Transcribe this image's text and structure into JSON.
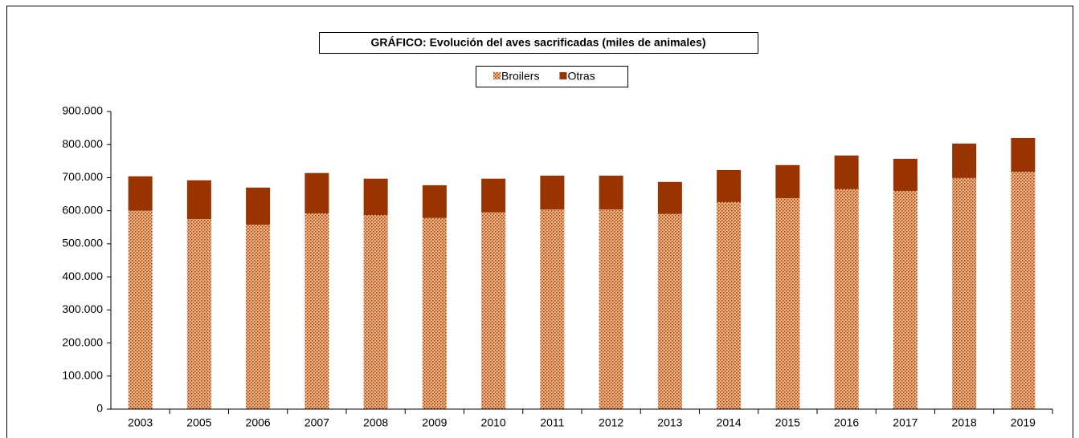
{
  "chart_data": {
    "type": "stacked_bar",
    "title": "GRÁFICO: Evolución del aves sacrificadas (miles de animales)",
    "categories": [
      "2003",
      "2005",
      "2006",
      "2007",
      "2008",
      "2009",
      "2010",
      "2011",
      "2012",
      "2013",
      "2014",
      "2015",
      "2016",
      "2017",
      "2018",
      "2019"
    ],
    "series": [
      {
        "name": "Broilers",
        "color": "#f4b183",
        "pattern": true,
        "values": [
          600000,
          575000,
          558000,
          592000,
          587000,
          578000,
          595000,
          604000,
          604000,
          590000,
          626000,
          638000,
          665000,
          660000,
          699000,
          718000
        ]
      },
      {
        "name": "Otras",
        "color": "#993300",
        "values": [
          104000,
          117000,
          112000,
          122000,
          110000,
          99000,
          102000,
          102000,
          102000,
          97000,
          97000,
          100000,
          102000,
          97000,
          104000,
          102000
        ]
      }
    ],
    "ylim": [
      0,
      900000
    ],
    "yticks": [
      0,
      {
        "value": 100000,
        "label": "100.000"
      },
      {
        "value": 200000,
        "label": "200.000"
      },
      {
        "value": 300000,
        "label": "300.000"
      },
      {
        "value": 400000,
        "label": "400.000"
      },
      {
        "value": 500000,
        "label": "500.000"
      },
      {
        "value": 600000,
        "label": "600.000"
      },
      {
        "value": 700000,
        "label": "700.000"
      },
      {
        "value": 800000,
        "label": "800.000"
      },
      {
        "value": 900000,
        "label": "900.000"
      }
    ],
    "legend": "top"
  }
}
